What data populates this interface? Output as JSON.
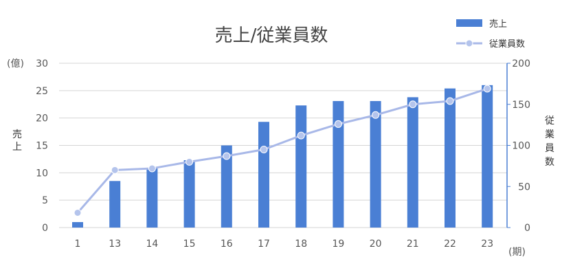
{
  "chart_data": {
    "type": "bar",
    "title": "売上/従業員数",
    "categories": [
      "1",
      "13",
      "14",
      "15",
      "16",
      "17",
      "18",
      "19",
      "20",
      "21",
      "22",
      "23"
    ],
    "series": [
      {
        "name": "売上",
        "type": "bar",
        "axis": "left",
        "values": [
          1,
          8.5,
          10.8,
          12.3,
          15,
          19.3,
          22.3,
          23.1,
          23.1,
          23.8,
          25.4,
          26
        ]
      },
      {
        "name": "従業員数",
        "type": "line",
        "axis": "right",
        "values": [
          18,
          70,
          72,
          80,
          87,
          95,
          112,
          126,
          137,
          150,
          154,
          169
        ]
      }
    ],
    "y_left": {
      "label": "売上",
      "unit": "(億)",
      "ylim": [
        0,
        30
      ],
      "ticks": [
        0,
        5,
        10,
        15,
        20,
        25,
        30
      ]
    },
    "y_right": {
      "label": "従業員数",
      "ylim": [
        0,
        200
      ],
      "ticks": [
        0,
        50,
        100,
        150,
        200
      ]
    },
    "x_unit": "(期)",
    "grid": true,
    "legend": "top-right",
    "colors": {
      "bar": "#4a7fd4",
      "line": "#a8b8e8",
      "marker": "#b4c4ec",
      "axis_right": "#4a7fd4",
      "grid": "#d4d4d4"
    }
  }
}
